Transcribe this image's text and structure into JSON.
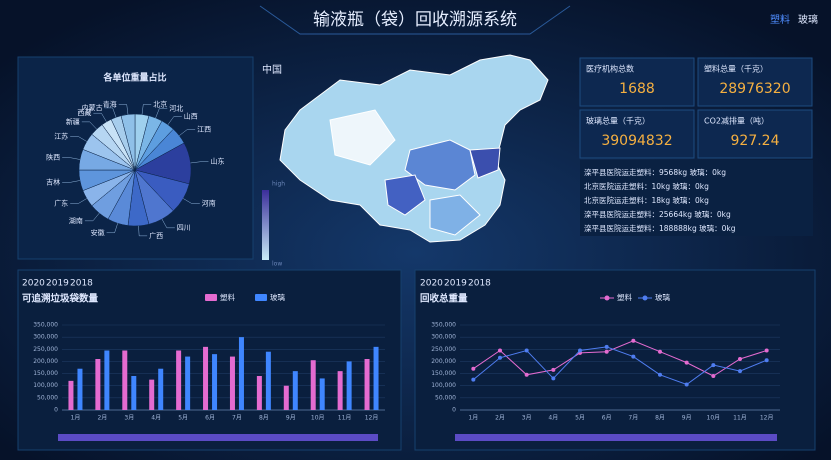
{
  "header": {
    "title": "输液瓶（袋）回收溯源系统",
    "tabs": [
      "塑料",
      "玻璃"
    ]
  },
  "map": {
    "title": "中国",
    "legend_high": "high",
    "legend_low": "low"
  },
  "stats": [
    {
      "label": "医疗机构总数",
      "value": "1688"
    },
    {
      "label": "塑料总量（千克）",
      "value": "28976320"
    },
    {
      "label": "玻璃总量（千克）",
      "value": "39094832"
    },
    {
      "label": "CO2减排量（吨）",
      "value": "927.24"
    }
  ],
  "log": [
    "滦平县医院运走塑料：9568kg 玻璃：0kg",
    "北京医院运走塑料：10kg 玻璃：0kg",
    "北京医院运走塑料：18kg 玻璃：0kg",
    "滦平县医院运走塑料：25664kg 玻璃：0kg",
    "滦平县医院运走塑料：188888kg 玻璃：0kg"
  ],
  "chart_data": [
    {
      "type": "pie",
      "title": "各单位重量占比",
      "categories": [
        "北京",
        "河北",
        "山西",
        "江西",
        "山东",
        "河南",
        "四川",
        "广西",
        "安徽",
        "湖南",
        "广东",
        "吉林",
        "陕西",
        "江苏",
        "新疆",
        "西藏",
        "内蒙古",
        "青海"
      ],
      "values": [
        4,
        4,
        4,
        5,
        12,
        9,
        8,
        6,
        6,
        6,
        5,
        6,
        6,
        5,
        4,
        3,
        3,
        4
      ],
      "colors": [
        "#9fd0ee",
        "#7bb6e6",
        "#5d9ee0",
        "#4a86d6",
        "#2c3f9e",
        "#3a5cc0",
        "#4f76cf",
        "#3d69c8",
        "#5a8ad8",
        "#6f9ee0",
        "#8ab4ea",
        "#5e95dc",
        "#77a9e4",
        "#9cc4ee",
        "#b6d6f2",
        "#c8e2f6",
        "#a7cdec",
        "#8fc0e8"
      ]
    },
    {
      "type": "bar",
      "title": "可追溯垃圾袋数量",
      "years": [
        "2020",
        "2019",
        "2018"
      ],
      "categories": [
        "1月",
        "2月",
        "3月",
        "4月",
        "5月",
        "6月",
        "7月",
        "8月",
        "9月",
        "10月",
        "11月",
        "12月"
      ],
      "series": [
        {
          "name": "塑料",
          "color": "#e46bd0",
          "values": [
            120000,
            210000,
            245000,
            125000,
            245000,
            260000,
            220000,
            140000,
            100000,
            205000,
            160000,
            210000
          ]
        },
        {
          "name": "玻璃",
          "color": "#3f86ff",
          "values": [
            170000,
            245000,
            140000,
            170000,
            220000,
            230000,
            300000,
            240000,
            160000,
            130000,
            200000,
            260000
          ]
        }
      ],
      "ylim": [
        0,
        350000
      ],
      "yticks": [
        0,
        {
          "value": 50000,
          "label": "50,000"
        },
        {
          "value": 100000,
          "label": "100,000"
        },
        {
          "value": 150000,
          "label": "150,000"
        },
        {
          "value": 200000,
          "label": "200,000"
        },
        {
          "value": 250000,
          "label": "250,000"
        },
        {
          "value": 300000,
          "label": "300,000"
        },
        {
          "value": 350000,
          "label": "350,000"
        }
      ]
    },
    {
      "type": "line",
      "title": "回收总重量",
      "years": [
        "2020",
        "2019",
        "2018"
      ],
      "categories": [
        "1月",
        "2月",
        "3月",
        "4月",
        "5月",
        "6月",
        "7月",
        "8月",
        "9月",
        "10月",
        "11月",
        "12月"
      ],
      "series": [
        {
          "name": "塑料",
          "color": "#e46bd0",
          "values": [
            170000,
            245000,
            145000,
            165000,
            235000,
            240000,
            285000,
            240000,
            195000,
            140000,
            210000,
            245000
          ]
        },
        {
          "name": "玻璃",
          "color": "#4f7df0",
          "values": [
            125000,
            215000,
            245000,
            130000,
            245000,
            260000,
            220000,
            145000,
            105000,
            185000,
            160000,
            205000
          ]
        }
      ],
      "ylim": [
        0,
        350000
      ],
      "yticks": [
        0,
        {
          "value": 50000,
          "label": "50,000"
        },
        {
          "value": 100000,
          "label": "100,000"
        },
        {
          "value": 150000,
          "label": "150,000"
        },
        {
          "value": 200000,
          "label": "200,000"
        },
        {
          "value": 250000,
          "label": "250,000"
        },
        {
          "value": 300000,
          "label": "300,000"
        },
        {
          "value": 350000,
          "label": "350,000"
        }
      ]
    }
  ]
}
